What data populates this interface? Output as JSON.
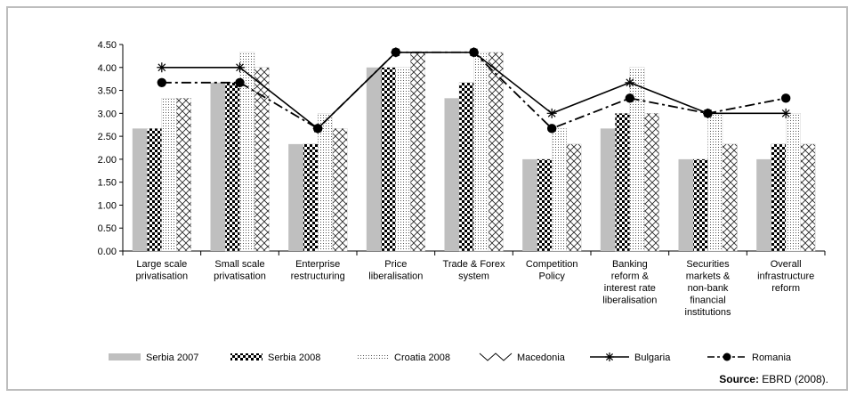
{
  "chart_data": {
    "type": "bar",
    "categories": [
      [
        "Large scale",
        "privatisation"
      ],
      [
        "Small scale",
        "privatisation"
      ],
      [
        "Enterprise",
        "restructuring"
      ],
      [
        "Price",
        "liberalisation"
      ],
      [
        "Trade & Forex",
        "system"
      ],
      [
        "Competition",
        "Policy"
      ],
      [
        "Banking",
        "reform &",
        "interest rate",
        "liberalisation"
      ],
      [
        "Securities",
        "markets &",
        "non-bank",
        "financial",
        "institutions"
      ],
      [
        "Overall",
        "infrastructure",
        "reform"
      ]
    ],
    "ylim": [
      0,
      4.5
    ],
    "yticks": [
      "0.00",
      "0.50",
      "1.00",
      "1.50",
      "2.00",
      "2.50",
      "3.00",
      "3.50",
      "4.00",
      "4.50"
    ],
    "bar_series": [
      {
        "name": "Serbia 2007",
        "pattern": "solid-grey",
        "values": [
          2.67,
          3.67,
          2.33,
          4.0,
          3.33,
          2.0,
          2.67,
          2.0,
          2.0
        ]
      },
      {
        "name": "Serbia 2008",
        "pattern": "checker",
        "values": [
          2.67,
          3.67,
          2.33,
          4.0,
          3.67,
          2.0,
          3.0,
          2.0,
          2.33
        ]
      },
      {
        "name": "Croatia 2008",
        "pattern": "dots",
        "values": [
          3.33,
          4.33,
          3.0,
          4.0,
          4.33,
          2.67,
          4.0,
          3.0,
          3.0
        ]
      },
      {
        "name": "Macedonia",
        "pattern": "crosshatch",
        "values": [
          3.33,
          4.0,
          2.67,
          4.33,
          4.33,
          2.33,
          3.0,
          2.33,
          2.33
        ]
      }
    ],
    "line_series": [
      {
        "name": "Bulgaria",
        "style": "solid-star",
        "values": [
          4.0,
          4.0,
          2.67,
          4.33,
          4.33,
          3.0,
          3.67,
          3.0,
          3.0
        ]
      },
      {
        "name": "Romania",
        "style": "dashdot-circle",
        "values": [
          3.67,
          3.67,
          2.67,
          4.33,
          4.33,
          2.67,
          3.33,
          3.0,
          3.33
        ]
      }
    ],
    "legend_position": "bottom",
    "grid": false
  },
  "source": {
    "label": "Source:",
    "text": "EBRD (2008)."
  }
}
